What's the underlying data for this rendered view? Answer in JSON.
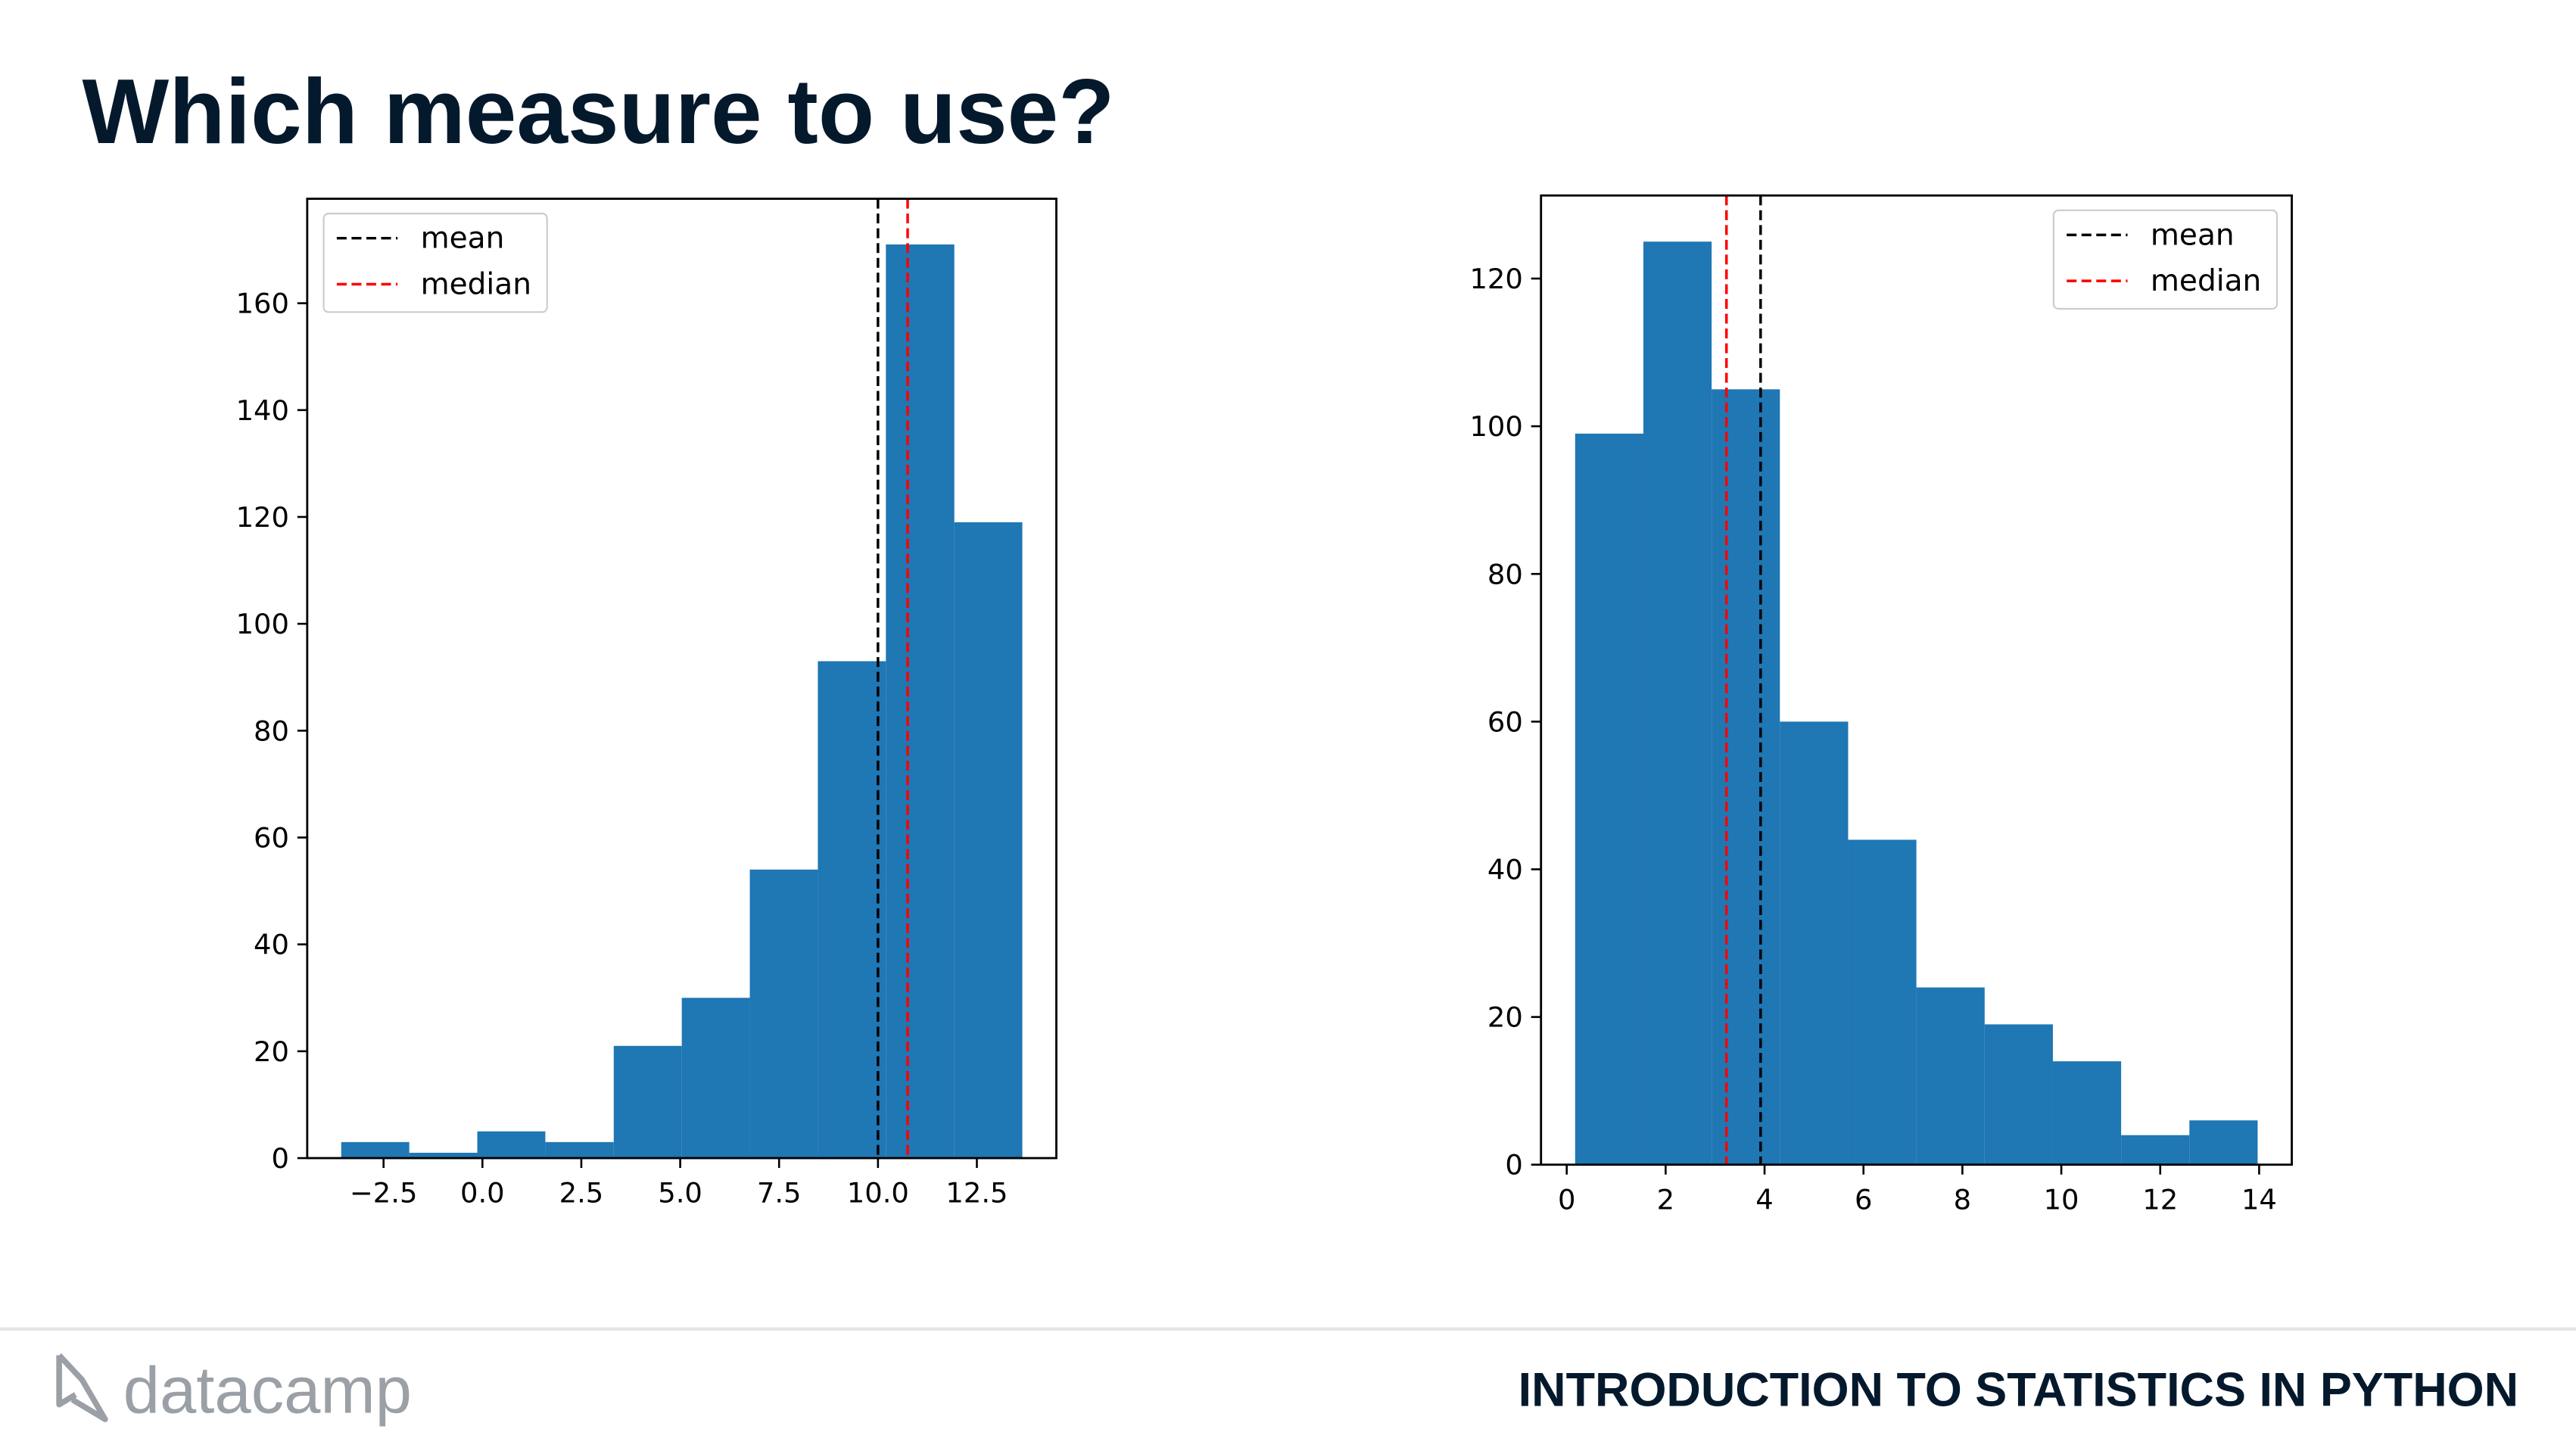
{
  "title": "Which measure to use?",
  "footer": "INTRODUCTION TO STATISTICS IN PYTHON",
  "logo": "datacamp",
  "chart_data": [
    {
      "type": "histogram",
      "bins": [
        -3.57,
        -1.85,
        -0.13,
        1.59,
        3.32,
        5.04,
        6.76,
        8.48,
        10.2,
        11.93,
        13.65
      ],
      "values": [
        3,
        1,
        5,
        3,
        21,
        30,
        54,
        93,
        171,
        119
      ],
      "color": "#1f77b4",
      "lines": [
        {
          "name": "mean",
          "x": 10.0,
          "color": "#000000"
        },
        {
          "name": "median",
          "x": 10.75,
          "color": "#ff0000"
        }
      ],
      "legend": "upper left",
      "xlim": [
        -4.43,
        14.51
      ],
      "ylim": [
        0,
        179.55
      ],
      "xticks": [
        {
          "value": -2.5,
          "label": "−2.5"
        },
        {
          "value": 0,
          "label": "0.0"
        },
        {
          "value": 2.5,
          "label": "2.5"
        },
        {
          "value": 5,
          "label": "5.0"
        },
        {
          "value": 7.5,
          "label": "7.5"
        },
        {
          "value": 10,
          "label": "10.0"
        },
        {
          "value": 12.5,
          "label": "12.5"
        }
      ],
      "yticks": [
        0,
        20,
        40,
        60,
        80,
        100,
        120,
        140,
        160
      ]
    },
    {
      "type": "histogram",
      "bins": [
        0.17,
        1.55,
        2.93,
        4.31,
        5.69,
        7.07,
        8.45,
        9.83,
        11.21,
        12.59,
        13.97
      ],
      "values": [
        99,
        125,
        105,
        60,
        44,
        24,
        19,
        14,
        4,
        6
      ],
      "color": "#1f77b4",
      "lines": [
        {
          "name": "mean",
          "x": 3.92,
          "color": "#000000"
        },
        {
          "name": "median",
          "x": 3.23,
          "color": "#ff0000"
        }
      ],
      "legend": "upper right",
      "xlim": [
        -0.52,
        14.66
      ],
      "ylim": [
        0,
        131.25
      ],
      "xticks": [
        0,
        2,
        4,
        6,
        8,
        10,
        12,
        14
      ],
      "yticks": [
        0,
        20,
        40,
        60,
        80,
        100,
        120
      ]
    }
  ]
}
